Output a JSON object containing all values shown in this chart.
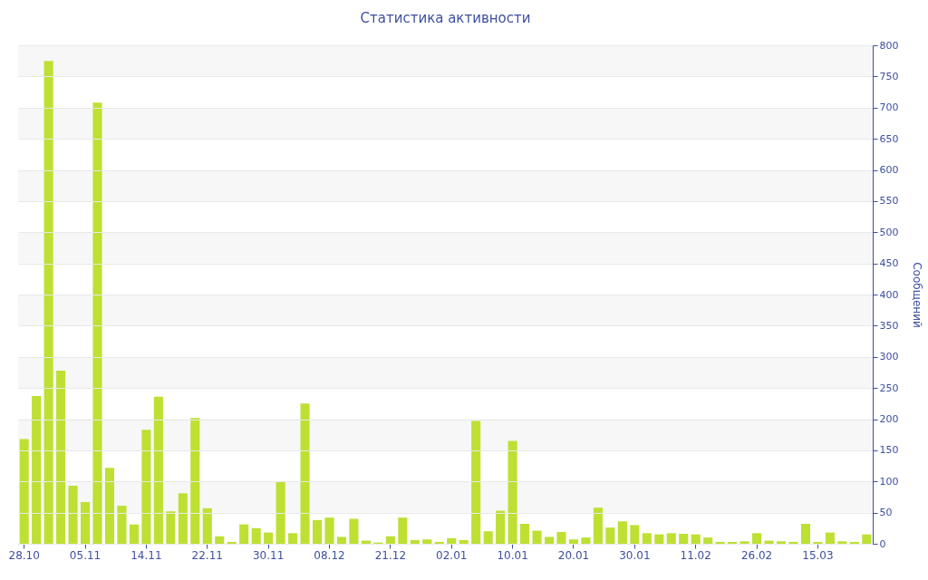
{
  "chart_data": {
    "type": "bar",
    "title": "Статистика активности",
    "ylabel": "Сообщений",
    "categories": [
      "28.10",
      null,
      null,
      null,
      null,
      "05.11",
      null,
      null,
      null,
      null,
      "14.11",
      null,
      null,
      null,
      null,
      "22.11",
      null,
      null,
      null,
      null,
      "30.11",
      null,
      null,
      null,
      null,
      "08.12",
      null,
      null,
      null,
      null,
      "21.12",
      null,
      null,
      null,
      null,
      "02.01",
      null,
      null,
      null,
      null,
      "10.01",
      null,
      null,
      null,
      null,
      "20.01",
      null,
      null,
      null,
      null,
      "30.01",
      null,
      null,
      null,
      null,
      "11.02",
      null,
      null,
      null,
      null,
      "26.02",
      null,
      null,
      null,
      null,
      "15.03",
      null,
      null,
      null,
      null
    ],
    "values": [
      168,
      237,
      775,
      278,
      93,
      67,
      708,
      122,
      61,
      31,
      183,
      236,
      52,
      81,
      202,
      57,
      12,
      3,
      31,
      25,
      18,
      99,
      17,
      225,
      38,
      42,
      11,
      40,
      5,
      2,
      12,
      42,
      6,
      7,
      3,
      9,
      6,
      197,
      20,
      53,
      165,
      32,
      21,
      11,
      19,
      7,
      10,
      58,
      26,
      36,
      30,
      17,
      15,
      17,
      16,
      15,
      10,
      3,
      3,
      4,
      17,
      5,
      4,
      3,
      32,
      3,
      18,
      4,
      3,
      15
    ],
    "color": "#bde033",
    "ylim": [
      0,
      800
    ],
    "yticks": [
      0,
      50,
      100,
      150,
      200,
      250,
      300,
      350,
      400,
      450,
      500,
      550,
      600,
      650,
      700,
      750,
      800
    ],
    "grid": "y"
  }
}
